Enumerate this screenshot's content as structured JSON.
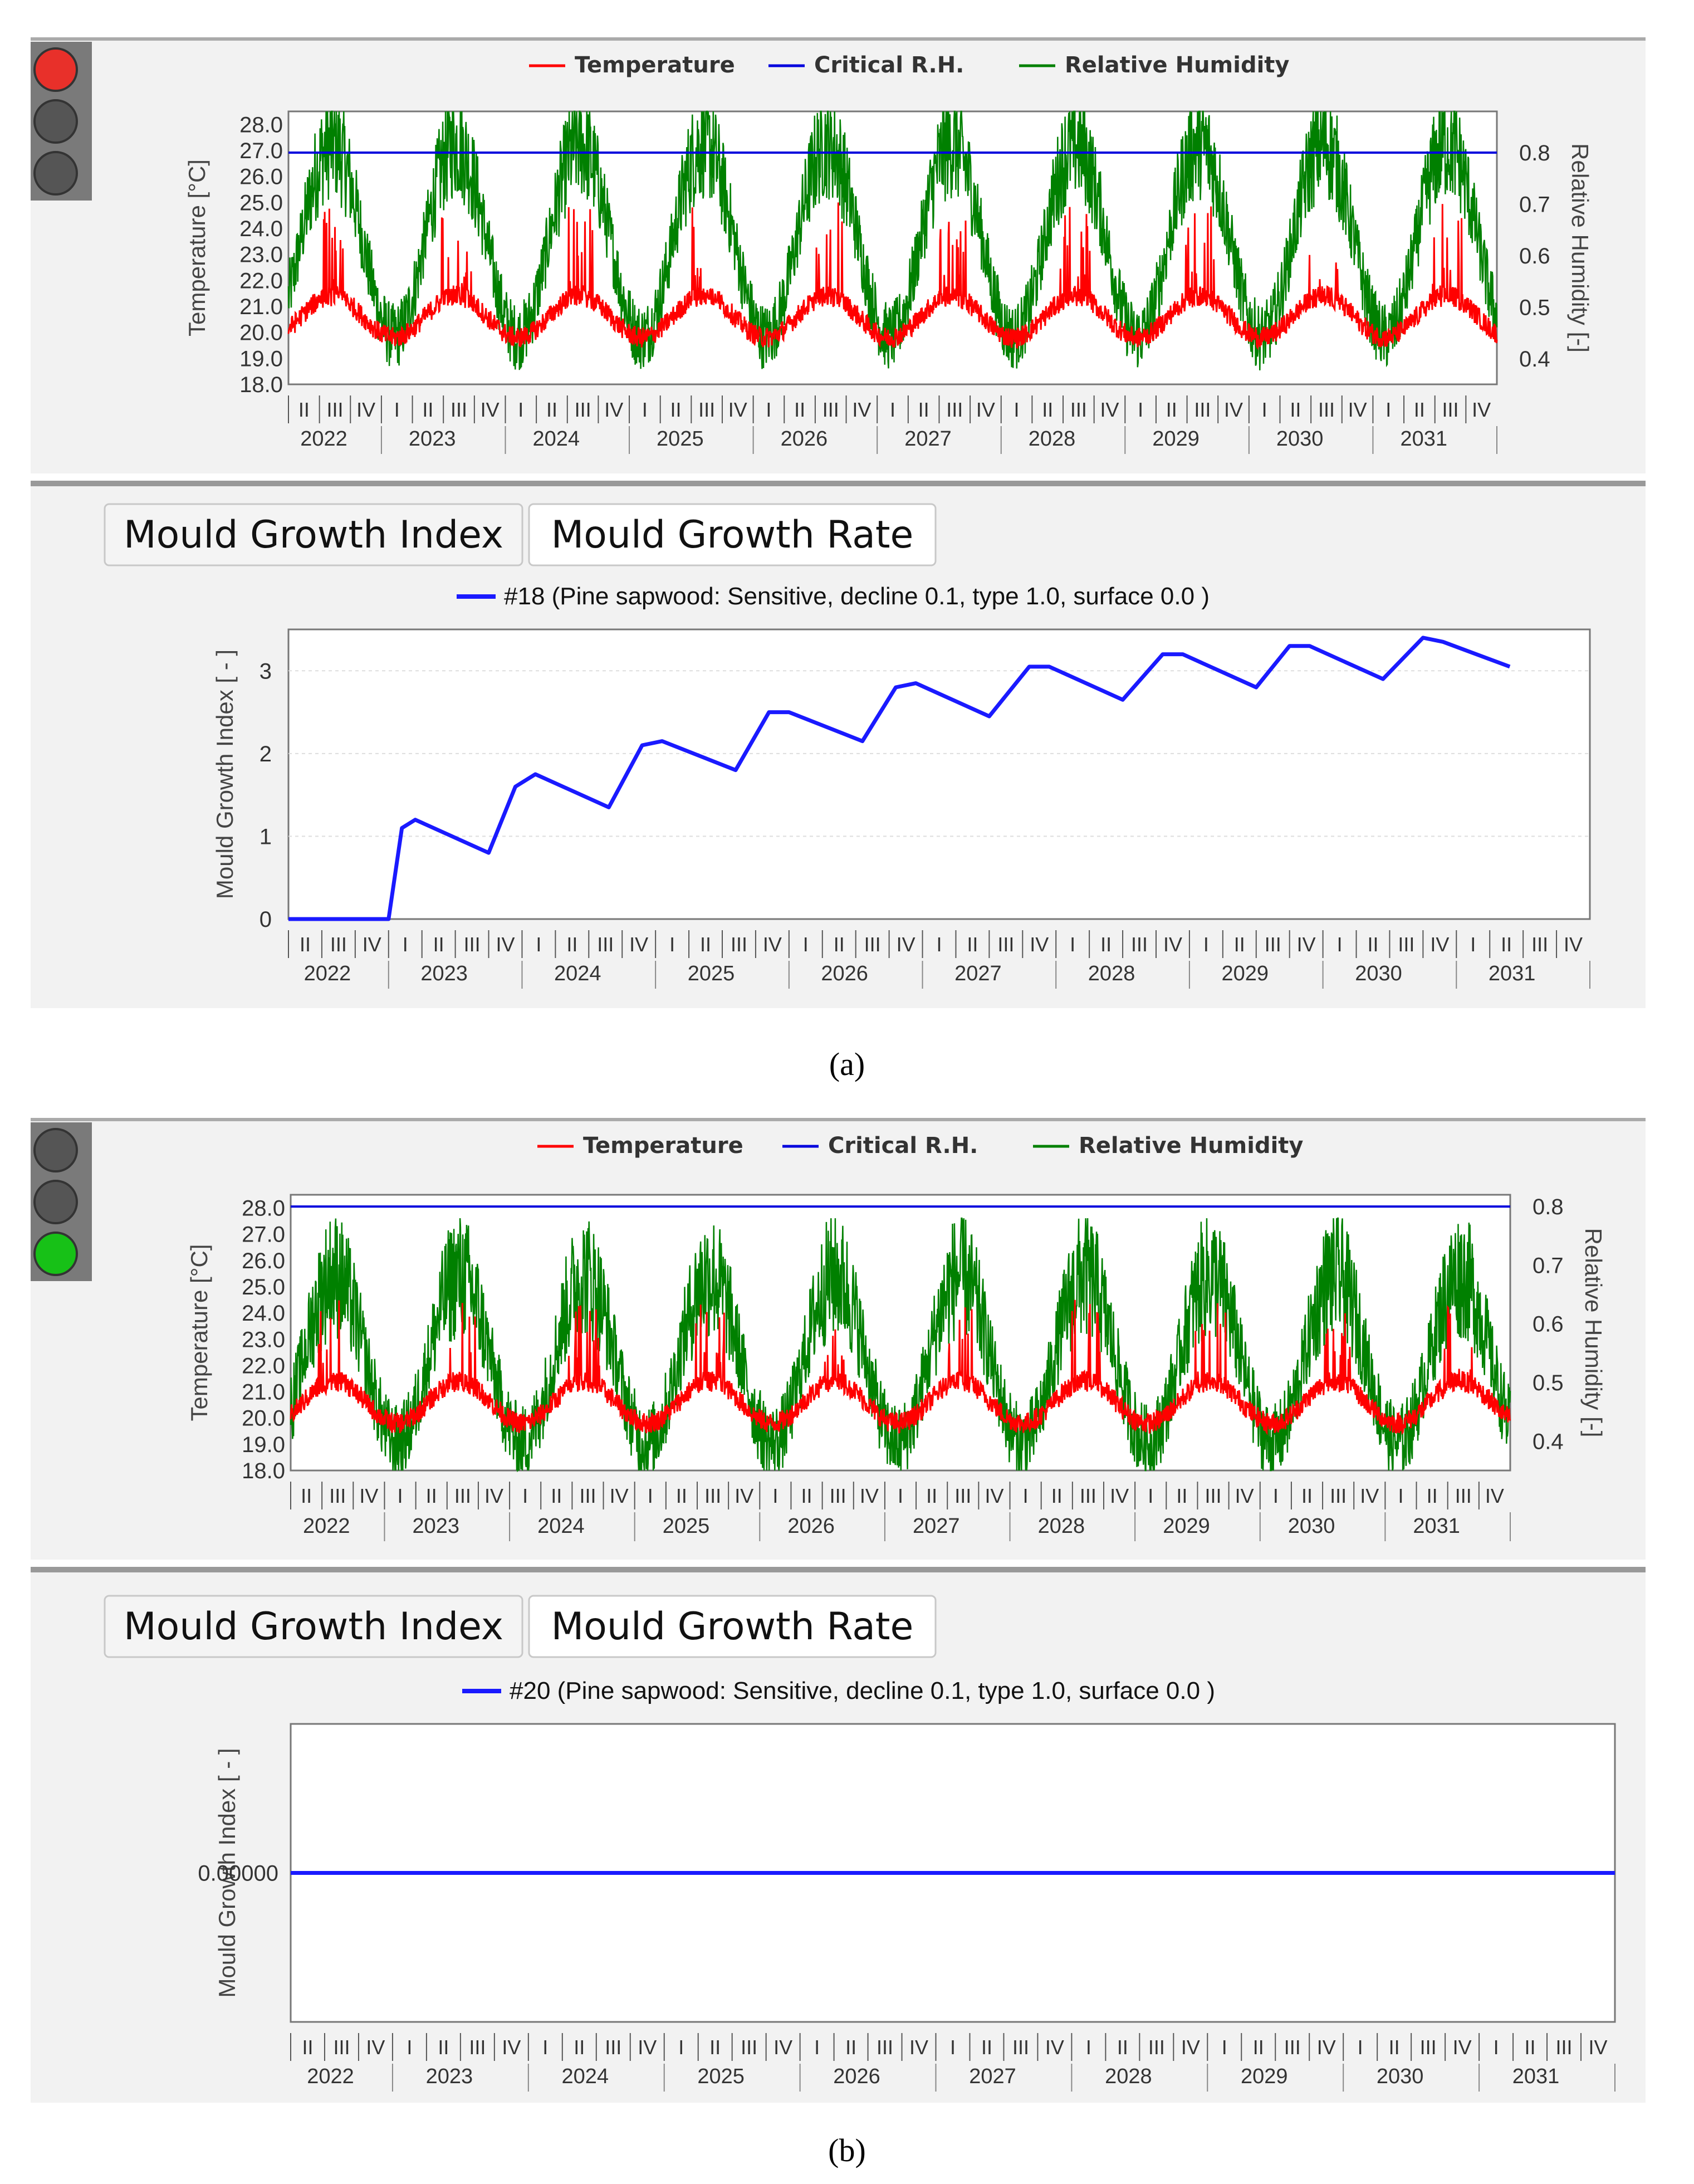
{
  "figure": {
    "label_a": "(a)",
    "label_b": "(b)"
  },
  "colors": {
    "temperature": "#ff0000",
    "critical": "#0000dd",
    "humidity": "#008000",
    "mould": "#1a1aff",
    "panel_bg": "#f2f2f2",
    "light_red": "#e8302a",
    "light_green": "#17c117",
    "light_off": "#555555"
  },
  "panels": [
    {
      "traffic_light_active": "red",
      "climate_chart": {
        "legend": [
          "Temperature",
          "Critical R.H.",
          "Relative Humidity"
        ],
        "y_left_title": "Temperature [°C]",
        "y_left_ticks": [
          "28.0",
          "27.0",
          "26.0",
          "25.0",
          "24.0",
          "23.0",
          "22.0",
          "21.0",
          "20.0",
          "19.0",
          "18.0"
        ],
        "y_right_title": "Relative Humidity [-]",
        "y_right_ticks": [
          "0.8",
          "0.7",
          "0.6",
          "0.5",
          "0.4"
        ],
        "critical_rh": 0.8,
        "quarters": [
          "II",
          "III",
          "IV",
          "I"
        ],
        "years": [
          "2022",
          "2023",
          "2024",
          "2025",
          "2026",
          "2027",
          "2028",
          "2029",
          "2030",
          "2031"
        ]
      },
      "tabs": [
        "Mould Growth Index",
        "Mould Growth Rate"
      ],
      "mould_chart": {
        "legend": "#18 (Pine sapwood: Sensitive, decline 0.1, type 1.0, surface 0.0 )",
        "y_title": "Mould Growth Index [ - ]",
        "y_ticks": [
          "3",
          "2",
          "1",
          "0"
        ],
        "years": [
          "2022",
          "2023",
          "2024",
          "2025",
          "2026",
          "2027",
          "2028",
          "2029",
          "2030",
          "2031"
        ],
        "quarters": [
          "II",
          "III",
          "IV",
          "I"
        ]
      }
    },
    {
      "traffic_light_active": "green",
      "climate_chart": {
        "legend": [
          "Temperature",
          "Critical R.H.",
          "Relative Humidity"
        ],
        "y_left_title": "Temperature [°C]",
        "y_left_ticks": [
          "28.0",
          "27.0",
          "26.0",
          "25.0",
          "24.0",
          "23.0",
          "22.0",
          "21.0",
          "20.0",
          "19.0",
          "18.0"
        ],
        "y_right_title": "Relative Humidity [-]",
        "y_right_ticks": [
          "0.8",
          "0.7",
          "0.6",
          "0.5",
          "0.4"
        ],
        "critical_rh": 0.8,
        "quarters": [
          "II",
          "III",
          "IV",
          "I"
        ],
        "years": [
          "2022",
          "2023",
          "2024",
          "2025",
          "2026",
          "2027",
          "2028",
          "2029",
          "2030",
          "2031"
        ]
      },
      "tabs": [
        "Mould Growth Index",
        "Mould Growth Rate"
      ],
      "mould_chart": {
        "legend": "#20 (Pine sapwood: Sensitive, decline 0.1, type 1.0, surface 0.0 )",
        "y_title": "Mould Growth Index [ - ]",
        "y_ticks": [
          "0.00000"
        ],
        "years": [
          "2022",
          "2023",
          "2024",
          "2025",
          "2026",
          "2027",
          "2028",
          "2029",
          "2030",
          "2031"
        ],
        "quarters": [
          "II",
          "III",
          "IV",
          "I"
        ]
      }
    }
  ],
  "chart_data": [
    {
      "type": "line",
      "title": "Climate (a)",
      "series": [
        {
          "name": "Temperature",
          "axis": "left",
          "unit": "°C",
          "baseline": 20.0,
          "seasonal_amplitude": 1.0,
          "peak_spikes_to": 25.0
        },
        {
          "name": "Critical R.H.",
          "axis": "right",
          "values_constant": 0.8
        },
        {
          "name": "Relative Humidity",
          "axis": "right",
          "seasonal_min": 0.38,
          "seasonal_max": 0.88
        }
      ],
      "ylim_left": [
        18.0,
        28.5
      ],
      "ylim_right": [
        0.35,
        0.88
      ],
      "x_range": [
        "2022 Q2",
        "2032 Q1"
      ]
    },
    {
      "type": "line",
      "title": "Mould Growth Index (a) #18",
      "x": [
        2022.25,
        2023.0,
        2023.1,
        2023.2,
        2023.75,
        2023.95,
        2024.1,
        2024.65,
        2024.9,
        2025.05,
        2025.6,
        2025.85,
        2026.0,
        2026.55,
        2026.8,
        2026.95,
        2027.5,
        2027.8,
        2027.95,
        2028.5,
        2028.8,
        2028.95,
        2029.5,
        2029.75,
        2029.9,
        2030.45,
        2030.75,
        2030.9,
        2031.4
      ],
      "values": [
        0,
        0,
        1.1,
        1.2,
        0.8,
        1.6,
        1.75,
        1.35,
        2.1,
        2.15,
        1.8,
        2.5,
        2.5,
        2.15,
        2.8,
        2.85,
        2.45,
        3.05,
        3.05,
        2.65,
        3.2,
        3.2,
        2.8,
        3.3,
        3.3,
        2.9,
        3.4,
        3.35,
        3.05
      ],
      "ylim": [
        0,
        3.5
      ],
      "ylabel": "Mould Growth Index [ - ]"
    },
    {
      "type": "line",
      "title": "Climate (b)",
      "series": [
        {
          "name": "Temperature",
          "axis": "left",
          "unit": "°C",
          "baseline": 20.0,
          "seasonal_amplitude": 1.0,
          "peak_spikes_to": 24.5
        },
        {
          "name": "Critical R.H.",
          "axis": "right",
          "values_constant": 0.8
        },
        {
          "name": "Relative Humidity",
          "axis": "right",
          "seasonal_min": 0.35,
          "seasonal_max": 0.73
        }
      ],
      "ylim_left": [
        18.0,
        28.5
      ],
      "ylim_right": [
        0.35,
        0.82
      ],
      "x_range": [
        "2022 Q2",
        "2032 Q1"
      ]
    },
    {
      "type": "line",
      "title": "Mould Growth Index (b) #20",
      "x": [
        2022.25,
        2032.0
      ],
      "values": [
        0,
        0
      ],
      "ylabel": "Mould Growth Index [ - ]"
    }
  ]
}
